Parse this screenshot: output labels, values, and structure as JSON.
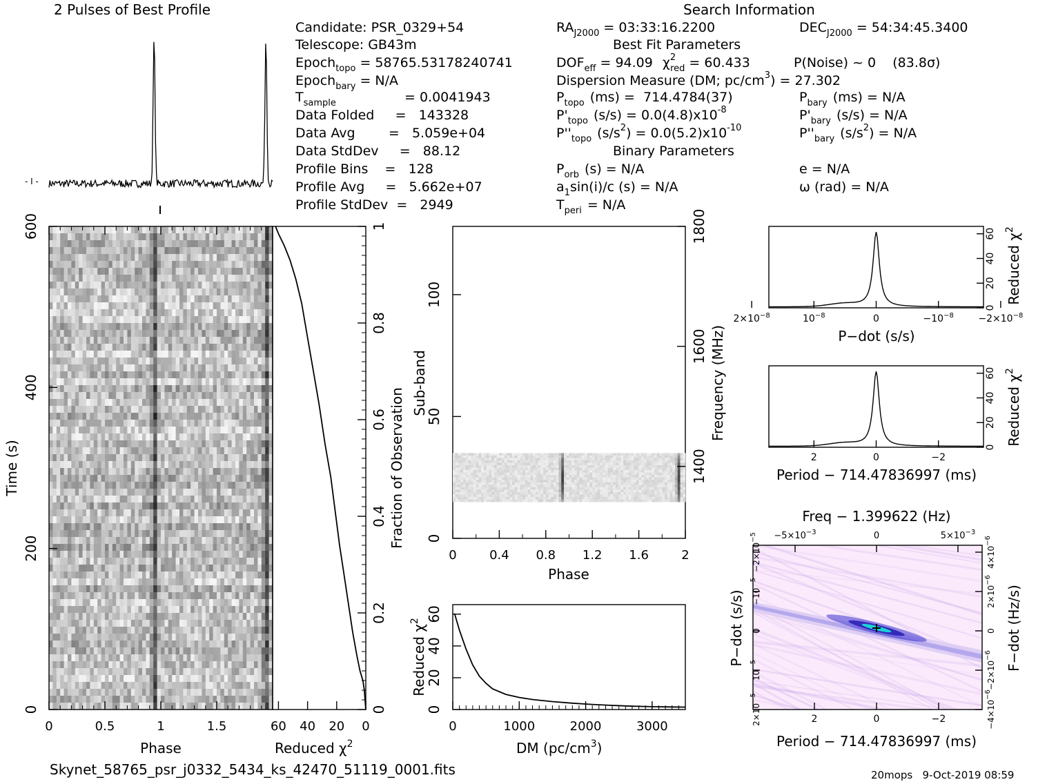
{
  "profile": {
    "title": "2 Pulses of Best Profile",
    "scale_label": "- I -",
    "pulse_phase": 0.94,
    "pulse_height": 0.95
  },
  "info": {
    "section_title": "Search Information",
    "candidate": "Candidate:  PSR_0329+54",
    "telescope": "Telescope:  GB43m",
    "epoch_topo": "Epoch",
    "epoch_topo_sub": "topo",
    "epoch_topo_val": "= 58765.53178240741",
    "epoch_bary": "Epoch",
    "epoch_bary_sub": "bary",
    "epoch_bary_val": "= N/A",
    "t_sample": "T",
    "t_sample_sub": "sample",
    "t_sample_val": "=   0.0041943",
    "data_folded": "Data Folded     =   143328",
    "data_avg": "Data Avg        =   5.059e+04",
    "data_stddev": "Data StdDev     =   88.12",
    "profile_bins": "Profile Bins    =   128",
    "profile_avg": "Profile Avg     =   5.662e+07",
    "profile_stddev": "Profile StdDev  =   2949",
    "ra_main": "RA",
    "ra_sub": "J2000",
    "ra_val": "= 03:33:16.2200",
    "dec_main": "DEC",
    "dec_sub": "J2000",
    "dec_val": "= 54:34:45.3400",
    "best_fit_title": "Best Fit Parameters",
    "dof_main": "DOF",
    "dof_sub": "eff",
    "dof_val": "= 94.09",
    "chi_main": "χ",
    "chi_sup": "2",
    "chi_sub": "red",
    "chi_val": "= 60.433",
    "p_noise": "P(Noise) ~ 0    (83.8σ)",
    "dm_main": "Dispersion Measure (DM; pc/cm",
    "dm_sup": "3",
    "dm_val": ") = 27.302",
    "p_topo_main": "P",
    "p_topo_sub": "topo",
    "p_topo_val": "(ms) =  714.4784(37)",
    "p_bary_main": "P",
    "p_bary_sub": "bary",
    "p_bary_val": "(ms) = N/A",
    "pd_topo_main": "P'",
    "pd_topo_sub": "topo",
    "pd_topo_val": "(s/s) = 0.0(4.8)x10",
    "pd_topo_exp": "-8",
    "pd_bary_main": "P'",
    "pd_bary_sub": "bary",
    "pd_bary_val": "(s/s) = N/A",
    "pdd_topo_main": "P''",
    "pdd_topo_sub": "topo",
    "pdd_topo_val": "(s/s",
    "pdd_topo_val_sup": "2",
    "pdd_topo_val2": ") = 0.0(5.2)x10",
    "pdd_topo_exp": "-10",
    "pdd_bary_main": "P''",
    "pdd_bary_sub": "bary",
    "pdd_bary_val": "(s/s",
    "pdd_bary_val_sup": "2",
    "pdd_bary_val2": ") = N/A",
    "binary_title": "Binary Parameters",
    "porb_main": "P",
    "porb_sub": "orb",
    "porb_val": "(s) = N/A",
    "e_val": "e = N/A",
    "a1_main": "a",
    "a1_sub": "1",
    "a1_val": "sin(i)/c (s) = N/A",
    "omega_val": "ω (rad) = N/A",
    "tperi_main": "T",
    "tperi_sub": "peri",
    "tperi_val": "= N/A"
  },
  "chart_data": [
    {
      "type": "heatmap",
      "name": "time-phase",
      "xlabel": "Phase",
      "ylabel": "Time (s)",
      "x_ticks": [
        "0",
        "0.5",
        "1",
        "1.5"
      ],
      "y_ticks": [
        "0",
        "200",
        "400",
        "600"
      ],
      "xlim": [
        0,
        2
      ],
      "ylim": [
        0,
        600
      ],
      "pulse_phases": [
        0.94,
        1.94
      ]
    },
    {
      "type": "line",
      "name": "reduced-chi2-vs-time",
      "xlabel": "Reduced χ",
      "xlabel_sup": "2",
      "ylabel": "Fraction of Observation",
      "x_ticks": [
        "60",
        "40",
        "20",
        "0"
      ],
      "y_ticks": [
        "0",
        "0.2",
        "0.4",
        "0.6",
        "0.8",
        "1"
      ],
      "xlim": [
        64,
        0
      ],
      "ylim": [
        0,
        1
      ],
      "points": [
        [
          0,
          0
        ],
        [
          0.5,
          0.02
        ],
        [
          1,
          0.04
        ],
        [
          2,
          0.06
        ],
        [
          4,
          0.08
        ],
        [
          6,
          0.11
        ],
        [
          9,
          0.16
        ],
        [
          12,
          0.22
        ],
        [
          15,
          0.28
        ],
        [
          18,
          0.34
        ],
        [
          21,
          0.41
        ],
        [
          24,
          0.48
        ],
        [
          28,
          0.55
        ],
        [
          32,
          0.63
        ],
        [
          36,
          0.7
        ],
        [
          40,
          0.77
        ],
        [
          44,
          0.84
        ],
        [
          48,
          0.89
        ],
        [
          52,
          0.93
        ],
        [
          56,
          0.96
        ],
        [
          60,
          0.985
        ],
        [
          62,
          1.0
        ]
      ]
    },
    {
      "type": "heatmap",
      "name": "subband-phase",
      "xlabel": "Phase",
      "ylabel": "Sub-band",
      "y2label": "Frequency (MHz)",
      "x_ticks": [
        "0",
        "0.4",
        "0.8",
        "1.2",
        "1.6",
        "2"
      ],
      "y_ticks": [
        "0",
        "50",
        "100"
      ],
      "y2_ticks": [
        "1400",
        "1600",
        "1800"
      ],
      "xlim": [
        0,
        2
      ],
      "ylim": [
        0,
        128
      ],
      "y2lim": [
        1280,
        1800
      ],
      "band_range": [
        15,
        35
      ],
      "pulse_phases": [
        0.94,
        1.94
      ]
    },
    {
      "type": "line",
      "name": "dm-curve",
      "xlabel": "DM (pc/cm",
      "xlabel_sup": "3",
      "ylabel": "Reduced χ",
      "ylabel_sup": "2",
      "x_ticks": [
        "0",
        "1000",
        "2000",
        "3000"
      ],
      "y_ticks": [
        "0",
        "20",
        "40",
        "60"
      ],
      "xlim": [
        0,
        3500
      ],
      "ylim": [
        0,
        66
      ],
      "points": [
        [
          27,
          60.4
        ],
        [
          100,
          50
        ],
        [
          200,
          38
        ],
        [
          300,
          28
        ],
        [
          400,
          21
        ],
        [
          500,
          16.5
        ],
        [
          600,
          13
        ],
        [
          800,
          9.5
        ],
        [
          1000,
          7.6
        ],
        [
          1200,
          6.3
        ],
        [
          1500,
          5
        ],
        [
          1800,
          4
        ],
        [
          2100,
          3.2
        ],
        [
          2400,
          2.6
        ],
        [
          2700,
          2.1
        ],
        [
          3000,
          1.8
        ],
        [
          3300,
          1.6
        ],
        [
          3500,
          1.5
        ]
      ]
    },
    {
      "type": "line",
      "name": "pdot-curve",
      "xlabel": "P−dot (s/s)",
      "ylabel": "Reduced χ",
      "ylabel_sup": "2",
      "x_ticks": [
        "2×10",
        "10",
        "0",
        "−10",
        "−2×10"
      ],
      "x_tick_exp": "−8",
      "y_ticks": [
        "0",
        "20",
        "40",
        "60"
      ],
      "xlim": [
        2.4e-08,
        -2.4e-08
      ],
      "ylim": [
        0,
        66
      ],
      "peak": 60.4
    },
    {
      "type": "line",
      "name": "period-curve",
      "xlabel": "Period − 714.47836997 (ms)",
      "ylabel": "Reduced χ",
      "ylabel_sup": "2",
      "x_ticks": [
        "2",
        "0",
        "−2"
      ],
      "y_ticks": [
        "0",
        "20",
        "40",
        "60"
      ],
      "xlim": [
        3.5,
        -3.5
      ],
      "ylim": [
        0,
        66
      ],
      "peak": 60.4
    },
    {
      "type": "heatmap",
      "name": "pdot-period-plane",
      "title": "Freq − 1.399622 (Hz)",
      "xlabel": "Period − 714.47836997 (ms)",
      "ylabel": "P−dot (s/s)",
      "y2label": "F−dot (Hz/s)",
      "x_ticks": [
        "2",
        "0",
        "−2"
      ],
      "top_ticks": [
        "−5×10",
        "0",
        "5×10"
      ],
      "top_tick_exp": "−3",
      "y_ticks": [
        "2×10",
        "10",
        "0",
        "−10",
        "−2×10"
      ],
      "y_tick_exp": "−5",
      "y2_ticks": [
        "−4×10",
        "−2×10",
        "0",
        "2×10",
        "4×10"
      ],
      "y2_tick_exp": "−6"
    }
  ],
  "footer": {
    "filename": "Skynet_58765_psr_j0332_5434_ks_42470_51119_0001.fits",
    "stamp": "20mops   9-Oct-2019 08:59"
  }
}
